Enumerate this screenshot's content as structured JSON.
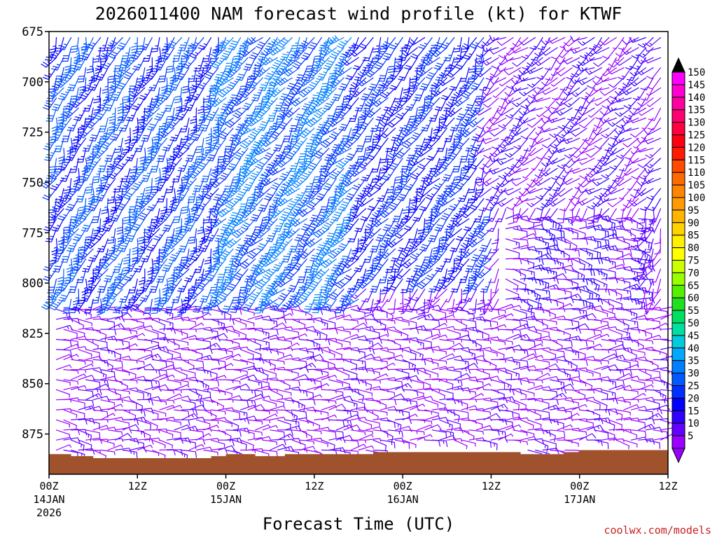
{
  "chart_data": {
    "type": "wind_barb_time_height",
    "title": "2026011400 NAM forecast wind profile (kt) for KTWF",
    "xlabel": "Forecast Time (UTC)",
    "credit": "coolwx.com/models",
    "x_range_hours": [
      0,
      84
    ],
    "y_range_hpa": [
      675,
      895
    ],
    "y_ticks": [
      "675",
      "700",
      "725",
      "750",
      "775",
      "800",
      "825",
      "850",
      "875"
    ],
    "x_ticks": [
      {
        "hour": 0,
        "time": "00Z",
        "date": "14JAN",
        "year": "2026"
      },
      {
        "hour": 12,
        "time": "12Z",
        "date": "",
        "year": ""
      },
      {
        "hour": 24,
        "time": "00Z",
        "date": "15JAN",
        "year": ""
      },
      {
        "hour": 36,
        "time": "12Z",
        "date": "",
        "year": ""
      },
      {
        "hour": 48,
        "time": "00Z",
        "date": "16JAN",
        "year": ""
      },
      {
        "hour": 60,
        "time": "12Z",
        "date": "",
        "year": ""
      },
      {
        "hour": 72,
        "time": "00Z",
        "date": "17JAN",
        "year": ""
      },
      {
        "hour": 84,
        "time": "12Z",
        "date": "",
        "year": ""
      }
    ],
    "colorbar": {
      "unit": "kt",
      "levels": [
        "150",
        "145",
        "140",
        "135",
        "130",
        "125",
        "120",
        "115",
        "110",
        "105",
        "100",
        "95",
        "90",
        "85",
        "80",
        "75",
        "70",
        "65",
        "60",
        "55",
        "50",
        "45",
        "40",
        "35",
        "30",
        "25",
        "20",
        "15",
        "10",
        "5"
      ],
      "colors": [
        "#ff00ff",
        "#ff00d0",
        "#ff00a0",
        "#ff0070",
        "#ff0040",
        "#ff0010",
        "#ff1a00",
        "#ff4a00",
        "#ff6a00",
        "#ff8500",
        "#ff9a00",
        "#ffb400",
        "#ffd200",
        "#ffef00",
        "#ffff00",
        "#ccff00",
        "#99ff00",
        "#55f000",
        "#20e020",
        "#00e060",
        "#00e0a0",
        "#00ccdd",
        "#00a8ff",
        "#0080ff",
        "#005aff",
        "#0030ff",
        "#0000ff",
        "#3000ff",
        "#6400ff",
        "#9a00ff"
      ],
      "min_arrow_color": "#9a00ff",
      "max_arrow_color": "#000000"
    },
    "terrain": {
      "color": "#a0522d",
      "surface_hpa": [
        {
          "hour": 0,
          "p": 885
        },
        {
          "hour": 3,
          "p": 886
        },
        {
          "hour": 6,
          "p": 887
        },
        {
          "hour": 12,
          "p": 887
        },
        {
          "hour": 18,
          "p": 887
        },
        {
          "hour": 22,
          "p": 886
        },
        {
          "hour": 24,
          "p": 885
        },
        {
          "hour": 28,
          "p": 886
        },
        {
          "hour": 30,
          "p": 886
        },
        {
          "hour": 32,
          "p": 885
        },
        {
          "hour": 42,
          "p": 885
        },
        {
          "hour": 44,
          "p": 884
        },
        {
          "hour": 60,
          "p": 884
        },
        {
          "hour": 64,
          "p": 885
        },
        {
          "hour": 68,
          "p": 885
        },
        {
          "hour": 70,
          "p": 884
        },
        {
          "hour": 72,
          "p": 883
        },
        {
          "hour": 76,
          "p": 883
        },
        {
          "hour": 84,
          "p": 883
        }
      ]
    },
    "grid": {
      "hour_step": 1,
      "levels_hpa": [
        678,
        683,
        688,
        693,
        698,
        703,
        708,
        713,
        718,
        723,
        728,
        733,
        738,
        743,
        748,
        753,
        758,
        763,
        768,
        773,
        778,
        783,
        788,
        793,
        798,
        803,
        808,
        813,
        818,
        823,
        828,
        833,
        838,
        843,
        848,
        853,
        858,
        863,
        868,
        873,
        878,
        883,
        888
      ]
    },
    "wind_regimes": [
      {
        "hours": [
          0,
          24
        ],
        "p_top": 675,
        "p_bottom": 810,
        "dir_deg": 200,
        "speed_kt": 28
      },
      {
        "hours": [
          24,
          42
        ],
        "p_top": 675,
        "p_bottom": 810,
        "dir_deg": 215,
        "speed_kt": 33
      },
      {
        "hours": [
          42,
          60
        ],
        "p_top": 675,
        "p_bottom": 800,
        "dir_deg": 210,
        "speed_kt": 25
      },
      {
        "hours": [
          60,
          84
        ],
        "p_top": 675,
        "p_bottom": 760,
        "dir_deg": 230,
        "speed_kt": 12
      },
      {
        "hours": [
          62,
          80
        ],
        "p_top": 765,
        "p_bottom": 835,
        "dir_deg": 95,
        "speed_kt": 14
      },
      {
        "hours": [
          0,
          84
        ],
        "p_top": 810,
        "p_bottom": 895,
        "dir_deg": 90,
        "speed_kt": 8
      }
    ]
  }
}
